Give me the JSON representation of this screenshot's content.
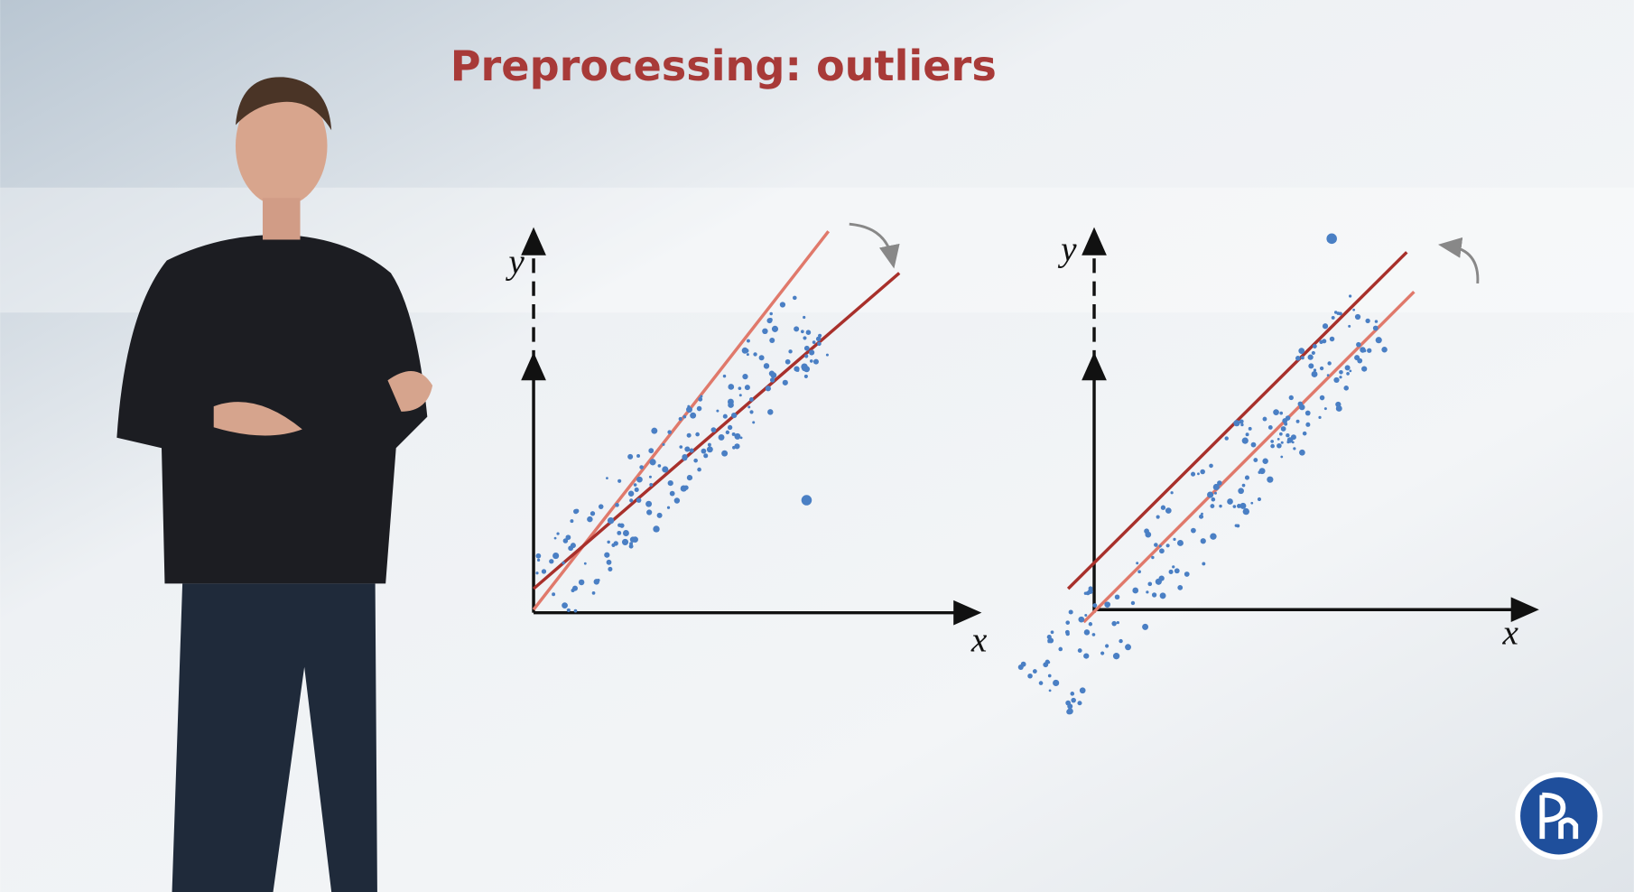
{
  "title": "Preprocessing: outliers",
  "plots": [
    {
      "y_label": "y",
      "x_label": "x"
    },
    {
      "y_label": "y",
      "x_label": "x"
    }
  ]
}
